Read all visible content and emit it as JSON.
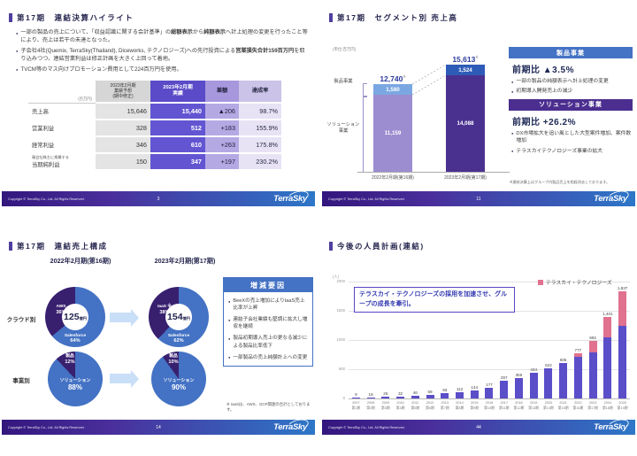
{
  "footer": {
    "copyright": "Copyright © TerraSky Co., Ltd. All Rights Reserved.",
    "logo": "TerraSky"
  },
  "colors": {
    "accent_purple": "#4f3f9e",
    "table_actual_purple": "#6355d2",
    "panel_blue": "#4472c4",
    "panel_purple": "#4b2e8f",
    "bar_light_blue": "#7aa7e2",
    "bar_light_purple": "#9c8dd0",
    "bar_blue": "#2e5bb7",
    "bar_dark_purple": "#4a3190",
    "pie_blue": "#4472c4",
    "pie_purple": "#38206f",
    "headcount_purple": "#5a4ec9",
    "headcount_pink": "#e0718f"
  },
  "slide1": {
    "page": "3",
    "title": "第17期　連結決算ハイライト",
    "bullets": [
      [
        {
          "t": "一部の製品の売上について、「収益認識に関する会計基準」の"
        },
        {
          "t": "総額表示",
          "b": 1
        },
        {
          "t": "から"
        },
        {
          "t": "純額表示",
          "b": 1
        },
        {
          "t": "へ計上処理の変更を行ったこと等により、売上は若干の未達となった。"
        }
      ],
      [
        {
          "t": "子会社4社(Quemix, TerraSky(Thailand), Diceworks, テクノロジーズ)への先行投資による"
        },
        {
          "t": "営業損失合計159百万円",
          "b": 1
        },
        {
          "t": "を取り込みつつ、連結営業利益は修正計画を大きく上回って着地。"
        }
      ],
      [
        {
          "t": "TVCM等のマス向けプロモーション費用として224百万円を使用。"
        }
      ]
    ],
    "table": {
      "unit": "(百万円)",
      "headers": {
        "forecast": "2023年2月期\n業績予想\n(期中修正)",
        "actual": "2023年2月期\n実績",
        "diff": "差額",
        "rate": "達成率"
      },
      "rows": [
        {
          "label": "売上高",
          "forecast": "15,646",
          "actual": "15,440",
          "diff": "▲206",
          "rate": "98.7%"
        },
        {
          "label": "営業利益",
          "forecast": "328",
          "actual": "512",
          "diff": "+183",
          "rate": "155.9%"
        },
        {
          "label": "経常利益",
          "forecast": "346",
          "actual": "610",
          "diff": "+263",
          "rate": "175.8%"
        },
        {
          "label": "当期純利益",
          "label_small": "親会社株主に帰属する",
          "forecast": "150",
          "actual": "347",
          "diff": "+197",
          "rate": "230.2%"
        }
      ]
    }
  },
  "slide2": {
    "page": "11",
    "title": "第17期　セグメント別 売上高",
    "unit": "(単位:百万円)",
    "note_mark": "※",
    "side_labels": {
      "product": "製品事業",
      "solution": "ソリューション事業"
    },
    "bar_labels": {
      "total_2022": "12,740",
      "total_2023": "15,613",
      "product_2022": "1,580",
      "solution_2022": "11,159",
      "product_2023": "1,524",
      "solution_2023": "14,088"
    },
    "x_labels": [
      "2022年2月期(第16期)",
      "2023年2月期(第17期)"
    ],
    "panels": [
      {
        "heading": "製品事業",
        "yoy": "前期比 ▲3.5%",
        "bullets": [
          "一部の製品の純額表示へ計上処理の変更",
          "初期導入開発売上の減少"
        ]
      },
      {
        "heading": "ソリューション事業",
        "yoy": "前期比 +26.2%",
        "bullets": [
          "DX市場拡大を追い風とした大型案件増加、案件数増加",
          "テラスカイテクノロジーズ事業の拡大"
        ]
      }
    ],
    "note": "※連結決算上はグループ内製品売上を相殺消去しております。"
  },
  "slide3": {
    "page": "14",
    "title": "第17期　連結売上構成",
    "col_headers": [
      "2022年2月期(第16期)",
      "2023年2月期(第17期)"
    ],
    "row_labels": [
      "クラウド別",
      "事業別"
    ],
    "donuts": [
      {
        "center_big": "125",
        "center_unit": "億円",
        "seg1": "AWS",
        "seg1_pct": "36%",
        "seg2": "Salesforce",
        "seg2_pct": "64%"
      },
      {
        "center_big": "154",
        "center_unit": "億円",
        "seg1": "IaaS ※",
        "seg1_pct": "38%",
        "seg2": "Salesforce",
        "seg2_pct": "62%"
      }
    ],
    "pies": [
      {
        "top": "製品",
        "top_pct": "12%",
        "main": "ソリューション",
        "main_pct": "88%"
      },
      {
        "top": "製品",
        "top_pct": "10%",
        "main": "ソリューション",
        "main_pct": "90%"
      }
    ],
    "panel": {
      "heading": "増減要因",
      "bullets": [
        "BeeXの売上増加によりIaaS売上比率が上昇",
        "連結子会社業績も堅調に拡大し増収を継続",
        "製品初期導入売上の更なる減少による製品比率低下",
        "一部製品の売上純額計上への変更"
      ]
    },
    "note": "※ IaaSは、AWS、GCP関連の合計としております。"
  },
  "slide4": {
    "page": "44",
    "title": "今後の人員計画(連結)",
    "ylabel": "(人)",
    "yticks": [
      "2000",
      "1500",
      "1000",
      "500",
      "0"
    ],
    "legend": "テラスカイ・テクノロジーズ",
    "callout": "テラスカイ・テクノロジーズの採用を加速させ、グループの成長を牽引。"
  },
  "chart_data": [
    {
      "id": "segment-sales",
      "type": "bar",
      "stacked": true,
      "title": "第17期 セグメント別 売上高",
      "unit": "百万円",
      "categories": [
        "2022年2月期(第16期)",
        "2023年2月期(第17期)"
      ],
      "series": [
        {
          "name": "ソリューション事業",
          "values": [
            11159,
            14088
          ]
        },
        {
          "name": "製品事業",
          "values": [
            1580,
            1524
          ]
        }
      ],
      "totals": [
        12740,
        15613
      ],
      "yoy": {
        "製品事業": "▲3.5%",
        "ソリューション事業": "+26.2%"
      }
    },
    {
      "id": "cloud-mix",
      "type": "pie",
      "title": "クラウド別",
      "pies": [
        {
          "period": "2022年2月期(第16期)",
          "center": "125億円",
          "slices": [
            {
              "label": "Salesforce",
              "value": 64
            },
            {
              "label": "AWS",
              "value": 36
            }
          ]
        },
        {
          "period": "2023年2月期(第17期)",
          "center": "154億円",
          "slices": [
            {
              "label": "Salesforce",
              "value": 62
            },
            {
              "label": "IaaS※",
              "value": 38
            }
          ]
        }
      ]
    },
    {
      "id": "business-mix",
      "type": "pie",
      "title": "事業別",
      "pies": [
        {
          "period": "2022年2月期(第16期)",
          "slices": [
            {
              "label": "ソリューション",
              "value": 88
            },
            {
              "label": "製品",
              "value": 12
            }
          ]
        },
        {
          "period": "2023年2月期(第17期)",
          "slices": [
            {
              "label": "ソリューション",
              "value": 90
            },
            {
              "label": "製品",
              "value": 10
            }
          ]
        }
      ]
    },
    {
      "id": "headcount-plan",
      "type": "bar",
      "stacked": true,
      "title": "今後の人員計画(連結)",
      "ylabel": "(人)",
      "ylim": [
        0,
        2000
      ],
      "years": [
        "2007",
        "2008",
        "2009",
        "2010",
        "2011",
        "2012",
        "2013",
        "2014",
        "2015",
        "2016",
        "2017",
        "2018",
        "2019",
        "2020",
        "2021",
        "2022",
        "2023",
        "2024",
        "2025"
      ],
      "terms": [
        "第1期",
        "第2期",
        "第3期",
        "第4期",
        "第5期",
        "第6期",
        "第7期",
        "第8期",
        "第9期",
        "第10期",
        "第11期",
        "第12期",
        "第13期",
        "第14期",
        "第15期",
        "第16期",
        "第17期",
        "第18期",
        "第19期"
      ],
      "totals": [
        9,
        18,
        26,
        32,
        46,
        59,
        93,
        112,
        144,
        177,
        297,
        356,
        434,
        522,
        605,
        777,
        992,
        1401,
        1837
      ],
      "labels": [
        "9",
        "18",
        "26",
        "32",
        "46",
        "59",
        "93",
        "112",
        "144",
        "177",
        "297",
        "356",
        "434",
        "522",
        "605",
        "777",
        "992",
        "1,401",
        "1,837"
      ],
      "series": [
        {
          "name": "テラスカイグループ",
          "values": [
            9,
            18,
            26,
            32,
            46,
            59,
            93,
            112,
            144,
            177,
            297,
            356,
            434,
            522,
            605,
            712,
            792,
            1041,
            1247
          ]
        },
        {
          "name": "テラスカイ・テクノロジーズ",
          "values": [
            0,
            0,
            0,
            0,
            0,
            0,
            0,
            0,
            0,
            0,
            0,
            0,
            0,
            0,
            0,
            65,
            200,
            360,
            590
          ]
        }
      ]
    }
  ]
}
